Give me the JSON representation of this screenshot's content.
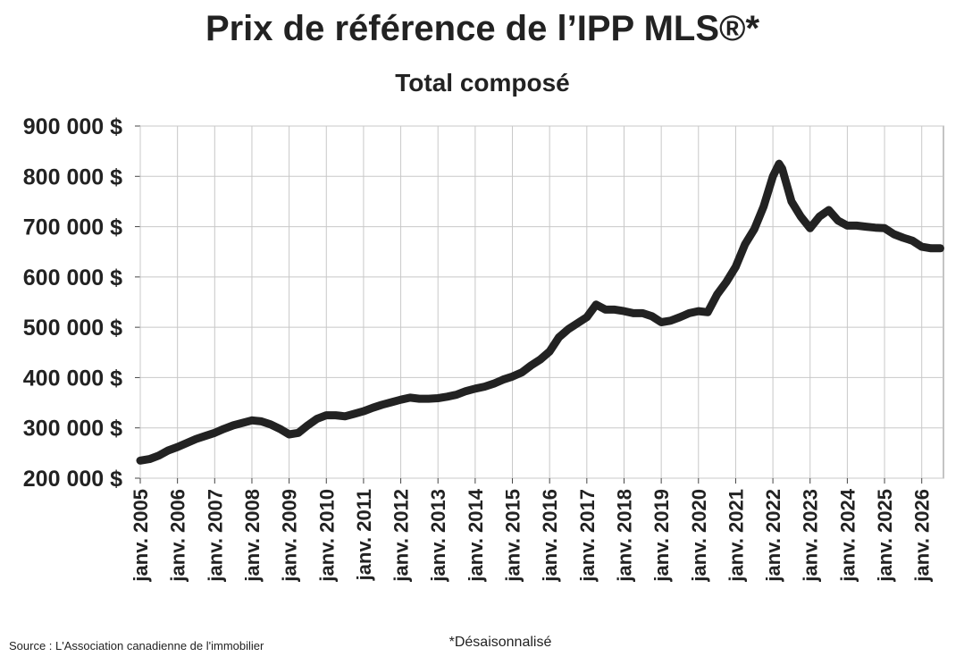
{
  "chart_data": {
    "type": "line",
    "title": "Prix de référence de l’IPP MLS®*",
    "subtitle": "Total composé",
    "source": "Source : L'Association canadienne de l'immobilier",
    "note": "*Désaisonnalisé",
    "grid": true,
    "x": [
      "2005-01",
      "2005-04",
      "2005-07",
      "2005-10",
      "2006-01",
      "2006-04",
      "2006-07",
      "2006-10",
      "2007-01",
      "2007-04",
      "2007-07",
      "2007-10",
      "2008-01",
      "2008-04",
      "2008-07",
      "2008-10",
      "2009-01",
      "2009-04",
      "2009-07",
      "2009-10",
      "2010-01",
      "2010-04",
      "2010-07",
      "2010-10",
      "2011-01",
      "2011-04",
      "2011-07",
      "2011-10",
      "2012-01",
      "2012-04",
      "2012-07",
      "2012-10",
      "2013-01",
      "2013-04",
      "2013-07",
      "2013-10",
      "2014-01",
      "2014-04",
      "2014-07",
      "2014-10",
      "2015-01",
      "2015-04",
      "2015-07",
      "2015-10",
      "2016-01",
      "2016-04",
      "2016-07",
      "2016-10",
      "2017-01",
      "2017-04",
      "2017-07",
      "2017-10",
      "2018-01",
      "2018-04",
      "2018-07",
      "2018-10",
      "2019-01",
      "2019-04",
      "2019-07",
      "2019-10",
      "2020-01",
      "2020-04",
      "2020-07",
      "2020-10",
      "2021-01",
      "2021-04",
      "2021-07",
      "2021-10",
      "2022-01",
      "2022-03",
      "2022-04",
      "2022-07",
      "2022-10",
      "2023-01",
      "2023-04",
      "2023-07",
      "2023-10",
      "2024-01",
      "2024-04",
      "2024-07",
      "2024-10",
      "2025-01",
      "2025-04",
      "2025-07",
      "2025-10",
      "2026-01",
      "2026-04",
      "2026-07"
    ],
    "series": [
      {
        "name": "Total composé",
        "color": "#222222",
        "values": [
          235000,
          238000,
          245000,
          255000,
          262000,
          270000,
          278000,
          284000,
          290000,
          298000,
          305000,
          310000,
          315000,
          313000,
          307000,
          298000,
          287000,
          290000,
          305000,
          318000,
          325000,
          325000,
          323000,
          328000,
          333000,
          340000,
          346000,
          351000,
          356000,
          360000,
          358000,
          358000,
          359000,
          362000,
          366000,
          373000,
          378000,
          382000,
          388000,
          396000,
          402000,
          410000,
          424000,
          436000,
          452000,
          480000,
          496000,
          508000,
          520000,
          545000,
          535000,
          535000,
          532000,
          528000,
          528000,
          522000,
          510000,
          513000,
          520000,
          528000,
          532000,
          530000,
          565000,
          590000,
          620000,
          665000,
          695000,
          740000,
          800000,
          825000,
          815000,
          750000,
          720000,
          697000,
          720000,
          733000,
          712000,
          702000,
          702000,
          700000,
          698000,
          697000,
          685000,
          678000,
          672000,
          660000,
          657000,
          657000
        ]
      }
    ],
    "xlim": [
      "2005-01",
      "2026-08"
    ],
    "xticks": [
      {
        "value": "2005-01",
        "label": "janv. 2005"
      },
      {
        "value": "2006-01",
        "label": "janv. 2006"
      },
      {
        "value": "2007-01",
        "label": "janv. 2007"
      },
      {
        "value": "2008-01",
        "label": "janv. 2008"
      },
      {
        "value": "2009-01",
        "label": "janv. 2009"
      },
      {
        "value": "2010-01",
        "label": "janv. 2010"
      },
      {
        "value": "2011-01",
        "label": "janv. 2011"
      },
      {
        "value": "2012-01",
        "label": "janv. 2012"
      },
      {
        "value": "2013-01",
        "label": "janv. 2013"
      },
      {
        "value": "2014-01",
        "label": "janv. 2014"
      },
      {
        "value": "2015-01",
        "label": "janv. 2015"
      },
      {
        "value": "2016-01",
        "label": "janv. 2016"
      },
      {
        "value": "2017-01",
        "label": "janv. 2017"
      },
      {
        "value": "2018-01",
        "label": "janv. 2018"
      },
      {
        "value": "2019-01",
        "label": "janv. 2019"
      },
      {
        "value": "2020-01",
        "label": "janv. 2020"
      },
      {
        "value": "2021-01",
        "label": "janv. 2021"
      },
      {
        "value": "2022-01",
        "label": "janv. 2022"
      },
      {
        "value": "2023-01",
        "label": "janv. 2023"
      },
      {
        "value": "2024-01",
        "label": "janv. 2024"
      },
      {
        "value": "2025-01",
        "label": "janv. 2025"
      },
      {
        "value": "2026-01",
        "label": "janv. 2026"
      }
    ],
    "ylim": [
      200000,
      900000
    ],
    "yticks": [
      {
        "value": 200000,
        "label": "200 000 $"
      },
      {
        "value": 300000,
        "label": "300 000 $"
      },
      {
        "value": 400000,
        "label": "400 000 $"
      },
      {
        "value": 500000,
        "label": "500 000 $"
      },
      {
        "value": 600000,
        "label": "600 000 $"
      },
      {
        "value": 700000,
        "label": "700 000 $"
      },
      {
        "value": 800000,
        "label": "800 000 $"
      },
      {
        "value": 900000,
        "label": "900 000 $"
      }
    ]
  }
}
